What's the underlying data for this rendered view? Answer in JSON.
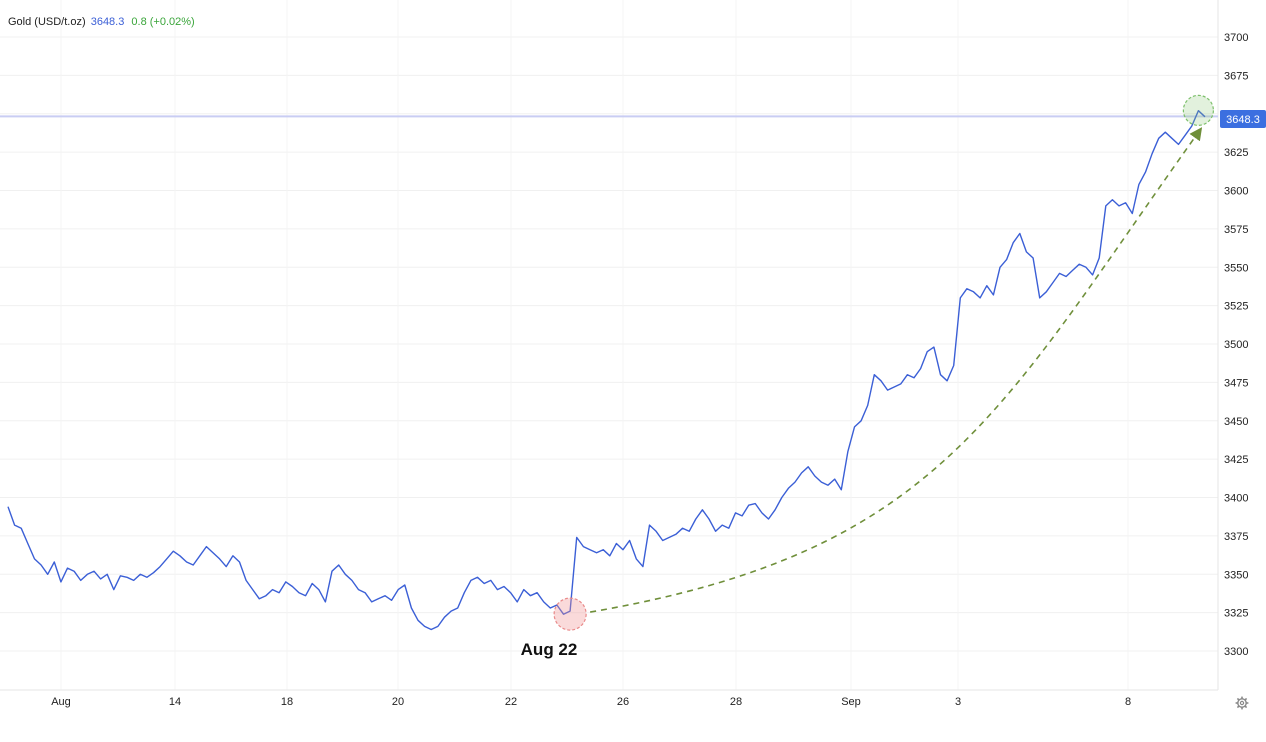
{
  "legend": {
    "name": "Gold (USD/t.oz)",
    "price": "3648.3",
    "change": "0.8 (+0.02%)"
  },
  "price_tag": "3648.3",
  "annotation": "Aug 22",
  "colors": {
    "line": "#3b5fd6",
    "price_line": "#c9cdf3",
    "price_tag_bg": "#3b6fe0",
    "arrow": "#6f8f3a",
    "start_marker": "#e98a8a",
    "end_marker": "#7cbf6a",
    "change_text": "#3aa53a"
  },
  "icons": {
    "settings": "gear-icon"
  },
  "chart_data": {
    "type": "line",
    "title": "",
    "xlabel": "",
    "ylabel": "",
    "ylim": [
      3285,
      3722
    ],
    "y_ticks": [
      3300,
      3325,
      3350,
      3375,
      3400,
      3425,
      3450,
      3475,
      3500,
      3525,
      3550,
      3575,
      3600,
      3625,
      3650,
      3675,
      3700
    ],
    "y_tick_labels_shown": [
      "3300",
      "3325",
      "3350",
      "3375",
      "3400",
      "3425",
      "3450",
      "3475",
      "3500",
      "3525",
      "3550",
      "3575",
      "3600",
      "3625",
      "3675",
      "3700"
    ],
    "x_ticks": [
      "Aug",
      "14",
      "18",
      "20",
      "22",
      "26",
      "28",
      "Sep",
      "3",
      "8"
    ],
    "grid": true,
    "last_value": 3648.3,
    "series": [
      {
        "values": [
          3394,
          3382,
          3380,
          3370,
          3360,
          3356,
          3350,
          3358,
          3345,
          3354,
          3352,
          3346,
          3350,
          3352,
          3347,
          3350,
          3340,
          3349,
          3348,
          3346,
          3350,
          3348,
          3351,
          3355,
          3360,
          3365,
          3362,
          3358,
          3356,
          3362,
          3368,
          3364,
          3360,
          3355,
          3362,
          3358,
          3346,
          3340,
          3334,
          3336,
          3340,
          3338,
          3345,
          3342,
          3338,
          3336,
          3344,
          3340,
          3332,
          3352,
          3356,
          3350,
          3346,
          3340,
          3338,
          3332,
          3334,
          3336,
          3333,
          3340,
          3343,
          3328,
          3320,
          3316,
          3314,
          3316,
          3322,
          3326,
          3328,
          3338,
          3346,
          3348,
          3344,
          3346,
          3340,
          3342,
          3338,
          3332,
          3340,
          3336,
          3338,
          3332,
          3328,
          3330,
          3324,
          3326,
          3374,
          3368,
          3366,
          3364,
          3366,
          3362,
          3370,
          3366,
          3372,
          3360,
          3355,
          3382,
          3378,
          3372,
          3374,
          3376,
          3380,
          3378,
          3386,
          3392,
          3386,
          3378,
          3382,
          3380,
          3390,
          3388,
          3395,
          3396,
          3390,
          3386,
          3392,
          3400,
          3406,
          3410,
          3416,
          3420,
          3414,
          3410,
          3408,
          3412,
          3405,
          3430,
          3446,
          3450,
          3460,
          3480,
          3476,
          3470,
          3472,
          3474,
          3480,
          3478,
          3484,
          3495,
          3498,
          3480,
          3476,
          3486,
          3530,
          3536,
          3534,
          3530,
          3538,
          3532,
          3550,
          3555,
          3566,
          3572,
          3560,
          3556,
          3530,
          3534,
          3540,
          3546,
          3544,
          3548,
          3552,
          3550,
          3545,
          3556,
          3590,
          3594,
          3590,
          3592,
          3585,
          3604,
          3612,
          3624,
          3634,
          3638,
          3634,
          3630,
          3636,
          3642,
          3652,
          3648
        ]
      }
    ]
  }
}
